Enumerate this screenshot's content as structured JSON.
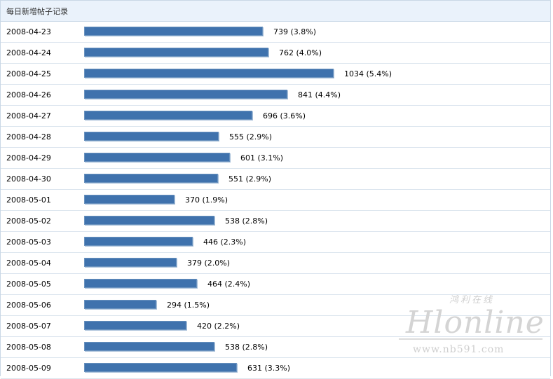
{
  "chart_data": {
    "type": "bar",
    "orientation": "horizontal",
    "title": "每日新增帖子记录",
    "categories": [
      "2008-04-23",
      "2008-04-24",
      "2008-04-25",
      "2008-04-26",
      "2008-04-27",
      "2008-04-28",
      "2008-04-29",
      "2008-04-30",
      "2008-05-01",
      "2008-05-02",
      "2008-05-03",
      "2008-05-04",
      "2008-05-05",
      "2008-05-06",
      "2008-05-07",
      "2008-05-08",
      "2008-05-09"
    ],
    "values": [
      739,
      762,
      1034,
      841,
      696,
      555,
      601,
      551,
      370,
      538,
      446,
      379,
      464,
      294,
      420,
      538,
      631
    ],
    "labels": [
      "739 (3.8%)",
      "762 (4.0%)",
      "1034 (5.4%)",
      "841 (4.4%)",
      "696 (3.6%)",
      "555 (2.9%)",
      "601 (3.1%)",
      "551 (2.9%)",
      "370 (1.9%)",
      "538 (2.8%)",
      "446 (2.3%)",
      "379 (2.0%)",
      "464 (2.4%)",
      "294 (1.5%)",
      "420 (2.2%)",
      "538 (2.8%)",
      "631 (3.3%)"
    ],
    "bar_color": "#3f72ad",
    "grid": false,
    "legend": "none"
  },
  "watermark": {
    "script": "Hlonline",
    "chinese": "鸿利在线",
    "url": "www.nb591.com"
  }
}
